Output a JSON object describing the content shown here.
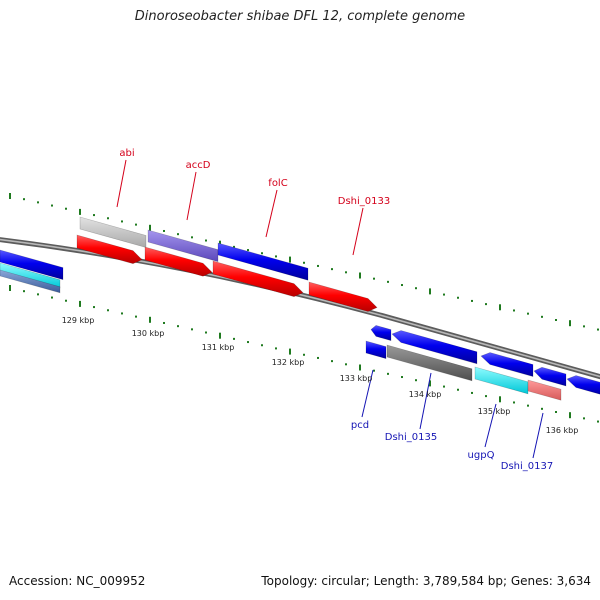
{
  "title": "Dinoroseobacter shibae DFL 12, complete genome",
  "footer": {
    "accession": "Accession: NC_009952",
    "summary": "Topology: circular; Length: 3,789,584 bp; Genes: 3,634"
  },
  "colors": {
    "top_label": "#d4001a",
    "bottom_label": "#1515b4",
    "tick": "#1f7a1f",
    "backbone": "#8a8a8a"
  },
  "top_gene_labels": [
    "abi",
    "accD",
    "folC",
    "Dshi_0133"
  ],
  "bottom_gene_labels": [
    "pcd",
    "Dshi_0135",
    "ugpQ",
    "Dshi_0137"
  ],
  "scale_labels": [
    "129 kbp",
    "130 kbp",
    "131 kbp",
    "132 kbp",
    "133 kbp",
    "134 kbp",
    "135 kbp",
    "136 kbp"
  ]
}
